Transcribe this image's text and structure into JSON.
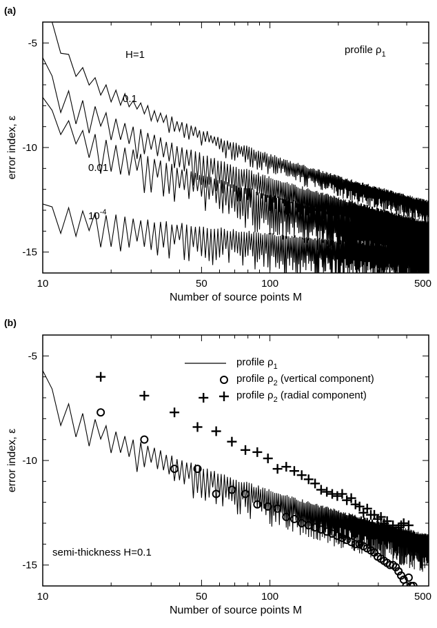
{
  "chart_data": [
    {
      "panel_label": "(a)",
      "type": "line",
      "xscale": "log",
      "xlabel": "Number of source points M",
      "ylabel": "error index, ε",
      "xlim": [
        10,
        500
      ],
      "ylim": [
        -16,
        -4
      ],
      "xticks": [
        10,
        50,
        100,
        500
      ],
      "xtick_labels": [
        "10",
        "50",
        "100",
        "500"
      ],
      "yticks": [
        -5,
        -10,
        -15
      ],
      "ytick_labels": [
        "-5",
        "-10",
        "-15"
      ],
      "annotation": {
        "text": "profile ",
        "symbol": "ρ",
        "subscript": "1"
      },
      "series": [
        {
          "label": "H=1",
          "label_sup": "",
          "start": [
            11,
            -4.0
          ],
          "end": [
            500,
            -12.6
          ],
          "decay": 0.55,
          "amp": 0.5,
          "amp_end": 0.8
        },
        {
          "label": "0.1",
          "label_sup": "",
          "start": [
            10,
            -5.7
          ],
          "end": [
            500,
            -13.6
          ],
          "decay": 0.6,
          "amp": 1.1,
          "amp_end": 1.3
        },
        {
          "label": "0.01",
          "label_sup": "",
          "start": [
            10,
            -7.6
          ],
          "end": [
            500,
            -14.2
          ],
          "decay": 0.65,
          "amp": 1.2,
          "amp_end": 1.6
        },
        {
          "label": "10",
          "label_sup": "-4",
          "start": [
            10,
            -12.7
          ],
          "end": [
            500,
            -14.9
          ],
          "decay": 0.8,
          "amp": 1.2,
          "amp_end": 1.4
        }
      ]
    },
    {
      "panel_label": "(b)",
      "type": "scatter",
      "xscale": "log",
      "xlabel": "Number of source points M",
      "ylabel": "error index, ε",
      "xlim": [
        10,
        500
      ],
      "ylim": [
        -16,
        -4
      ],
      "xticks": [
        10,
        50,
        100,
        500
      ],
      "xtick_labels": [
        "10",
        "50",
        "100",
        "500"
      ],
      "yticks": [
        -5,
        -10,
        -15
      ],
      "ytick_labels": [
        "-5",
        "-10",
        "-15"
      ],
      "annotation": "semi-thickness H=0.1",
      "legend_position": "top-right",
      "legend": [
        {
          "marker": "line",
          "text": "profile ",
          "symbol": "ρ",
          "subscript": "1",
          "suffix": ""
        },
        {
          "marker": "circle",
          "text": "profile ",
          "symbol": "ρ",
          "subscript": "2",
          "suffix": " (vertical component)"
        },
        {
          "marker": "plus",
          "text": "profile ",
          "symbol": "ρ",
          "subscript": "2",
          "suffix": " (radial component)"
        }
      ],
      "line_series": {
        "start": [
          10,
          -5.7
        ],
        "end": [
          500,
          -13.6
        ],
        "decay": 0.6,
        "amp": 1.1,
        "amp_end": 1.3
      },
      "circles": [
        [
          18,
          -7.7
        ],
        [
          28,
          -9.0
        ],
        [
          38,
          -10.4
        ],
        [
          48,
          -10.4
        ],
        [
          58,
          -11.6
        ],
        [
          68,
          -11.4
        ],
        [
          78,
          -11.6
        ],
        [
          88,
          -12.1
        ],
        [
          98,
          -12.2
        ],
        [
          108,
          -12.3
        ],
        [
          118,
          -12.7
        ],
        [
          128,
          -12.8
        ],
        [
          138,
          -13.0
        ],
        [
          148,
          -13.1
        ],
        [
          158,
          -13.2
        ],
        [
          168,
          -13.3
        ],
        [
          178,
          -13.4
        ],
        [
          188,
          -13.5
        ],
        [
          198,
          -13.6
        ],
        [
          208,
          -13.7
        ],
        [
          218,
          -13.8
        ],
        [
          228,
          -13.9
        ],
        [
          238,
          -14.0
        ],
        [
          248,
          -14.0
        ],
        [
          258,
          -14.1
        ],
        [
          268,
          -14.2
        ],
        [
          278,
          -14.3
        ],
        [
          288,
          -14.4
        ],
        [
          298,
          -14.6
        ],
        [
          308,
          -14.7
        ],
        [
          318,
          -14.8
        ],
        [
          328,
          -14.9
        ],
        [
          338,
          -15.0
        ],
        [
          348,
          -15.0
        ],
        [
          358,
          -15.1
        ],
        [
          368,
          -15.3
        ],
        [
          378,
          -15.5
        ],
        [
          388,
          -15.7
        ],
        [
          398,
          -16.0
        ],
        [
          408,
          -15.6
        ],
        [
          418,
          -16.0
        ],
        [
          428,
          -16.0
        ]
      ],
      "pluses": [
        [
          18,
          -6.0
        ],
        [
          28,
          -6.9
        ],
        [
          38,
          -7.7
        ],
        [
          48,
          -8.4
        ],
        [
          51,
          -7.0
        ],
        [
          58,
          -8.6
        ],
        [
          68,
          -9.1
        ],
        [
          78,
          -9.5
        ],
        [
          88,
          -9.6
        ],
        [
          98,
          -9.9
        ],
        [
          108,
          -10.4
        ],
        [
          118,
          -10.3
        ],
        [
          128,
          -10.5
        ],
        [
          138,
          -10.7
        ],
        [
          148,
          -10.9
        ],
        [
          158,
          -11.1
        ],
        [
          168,
          -11.4
        ],
        [
          178,
          -11.5
        ],
        [
          188,
          -11.6
        ],
        [
          198,
          -11.7
        ],
        [
          208,
          -11.6
        ],
        [
          218,
          -11.9
        ],
        [
          228,
          -11.8
        ],
        [
          238,
          -12.1
        ],
        [
          248,
          -12.2
        ],
        [
          258,
          -12.5
        ],
        [
          268,
          -12.3
        ],
        [
          278,
          -12.6
        ],
        [
          288,
          -12.6
        ],
        [
          298,
          -12.8
        ],
        [
          308,
          -12.7
        ],
        [
          318,
          -13.0
        ],
        [
          328,
          -12.9
        ],
        [
          338,
          -13.3
        ],
        [
          348,
          -13.1
        ],
        [
          358,
          -13.4
        ],
        [
          368,
          -13.2
        ],
        [
          378,
          -13.1
        ],
        [
          388,
          -13.0
        ],
        [
          408,
          -13.1
        ]
      ]
    }
  ]
}
